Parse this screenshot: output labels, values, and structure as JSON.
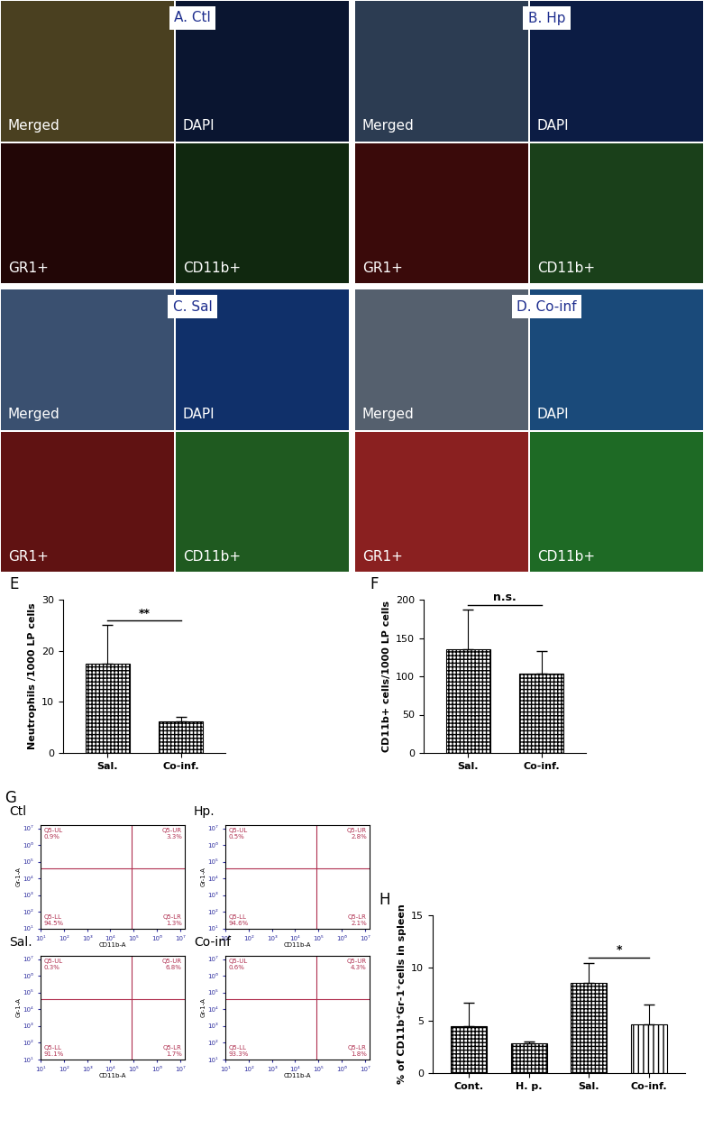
{
  "microscopy": {
    "channels": [
      "Merged",
      "DAPI",
      "GR1+",
      "CD11b+"
    ],
    "panels": [
      {
        "title": "A. Ctl",
        "colors": [
          "#4a4020",
          "#0a1530",
          "#220606",
          "#10280f"
        ]
      },
      {
        "title": "B. Hp",
        "colors": [
          "#2c3c52",
          "#0c1c44",
          "#3a0a0a",
          "#1a401a"
        ]
      },
      {
        "title": "C. Sal",
        "colors": [
          "#3a5070",
          "#10306a",
          "#601212",
          "#1f5a20"
        ]
      },
      {
        "title": "D. Co-inf",
        "colors": [
          "#55606e",
          "#1a4a7a",
          "#8a2020",
          "#1e6a25"
        ]
      }
    ]
  },
  "chart_data": [
    {
      "type": "bar",
      "panel": "E",
      "ylabel": "Neutrophils /1000 LP cells",
      "categories": [
        "Sal.",
        "Co-inf."
      ],
      "values": [
        17.5,
        6.2
      ],
      "errors": [
        7.5,
        0.8
      ],
      "color": "#ffffff",
      "ylim": [
        0,
        30
      ],
      "yticks": [
        0,
        10,
        20,
        30
      ],
      "significance": {
        "between": [
          "Sal.",
          "Co-inf."
        ],
        "label": "**"
      }
    },
    {
      "type": "bar",
      "panel": "F",
      "ylabel": "CD11b+ cells/1000 LP cells",
      "categories": [
        "Sal.",
        "Co-inf."
      ],
      "values": [
        135,
        104
      ],
      "errors": [
        52,
        29
      ],
      "color": "#ffffff",
      "ylim": [
        0,
        200
      ],
      "yticks": [
        0,
        50,
        100,
        150,
        200
      ],
      "significance": {
        "between": [
          "Sal.",
          "Co-inf."
        ],
        "label": "n.s."
      }
    },
    {
      "type": "bar",
      "panel": "H",
      "ylabel": "% of CD11b⁺Gr-1⁺cells in spleen",
      "categories": [
        "Cont.",
        "H. p.",
        "Sal.",
        "Co-inf."
      ],
      "values": [
        4.5,
        2.8,
        8.6,
        4.6
      ],
      "errors": [
        2.2,
        0.2,
        1.9,
        1.9
      ],
      "color": "#ffffff",
      "ylim": [
        0,
        15
      ],
      "yticks": [
        0,
        5,
        10,
        15
      ],
      "significance": {
        "between": [
          "Sal.",
          "Co-inf."
        ],
        "label": "*"
      }
    }
  ],
  "flow_cytometry": {
    "panel": "G",
    "xlabel": "CD11b-A",
    "ylabel": "Gr-1-A",
    "log": true,
    "xlim": [
      10,
      15848931.9
    ],
    "ylim": [
      10,
      15848931.9
    ],
    "ticks": [
      {
        "value": 10,
        "label": "10¹"
      },
      {
        "value": 100,
        "label": "10²"
      },
      {
        "value": 1000,
        "label": "10³"
      },
      {
        "value": 10000,
        "label": "10⁴"
      },
      {
        "value": 100000,
        "label": "10⁵"
      },
      {
        "value": 1000000,
        "label": "10⁶"
      },
      {
        "value": 10000000,
        "label": "10⁷"
      }
    ],
    "gate": {
      "x": 80000,
      "y": 40000
    },
    "plots": [
      {
        "name": "Ctl",
        "quadrants": {
          "UL": {
            "name": "Q5-UL",
            "value": 0.9,
            "label": "0.9%"
          },
          "UR": {
            "name": "Q5-UR",
            "value": 3.3,
            "label": "3.3%"
          },
          "LL": {
            "name": "Q5-LL",
            "value": 94.5,
            "label": "94.5%"
          },
          "LR": {
            "name": "Q5-LR",
            "value": 1.3,
            "label": "1.3%"
          }
        }
      },
      {
        "name": "Hp.",
        "quadrants": {
          "UL": {
            "name": "Q5-UL",
            "value": 0.5,
            "label": "0.5%"
          },
          "UR": {
            "name": "Q5-UR",
            "value": 2.8,
            "label": "2.8%"
          },
          "LL": {
            "name": "Q5-LL",
            "value": 94.6,
            "label": "94.6%"
          },
          "LR": {
            "name": "Q5-LR",
            "value": 2.1,
            "label": "2.1%"
          }
        }
      },
      {
        "name": "Sal.",
        "quadrants": {
          "UL": {
            "name": "Q5-UL",
            "value": 0.3,
            "label": "0.3%"
          },
          "UR": {
            "name": "Q5-UR",
            "value": 6.8,
            "label": "6.8%"
          },
          "LL": {
            "name": "Q5-LL",
            "value": 91.1,
            "label": "91.1%"
          },
          "LR": {
            "name": "Q5-LR",
            "value": 1.7,
            "label": "1.7%"
          }
        }
      },
      {
        "name": "Co-inf",
        "quadrants": {
          "UL": {
            "name": "Q5-UL",
            "value": 0.6,
            "label": "0.6%"
          },
          "UR": {
            "name": "Q5-UR",
            "value": 4.3,
            "label": "4.3%"
          },
          "LL": {
            "name": "Q5-LL",
            "value": 93.3,
            "label": "93.3%"
          },
          "LR": {
            "name": "Q5-LR",
            "value": 1.8,
            "label": "1.8%"
          }
        }
      }
    ]
  }
}
